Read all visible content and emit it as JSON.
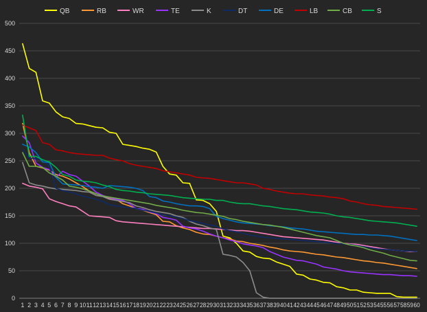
{
  "chart_data": {
    "type": "line",
    "title": "",
    "xlabel": "",
    "ylabel": "",
    "ylim": [
      0,
      500
    ],
    "yticks": [
      0,
      50,
      100,
      150,
      200,
      250,
      300,
      350,
      400,
      450,
      500
    ],
    "x": [
      1,
      2,
      3,
      4,
      5,
      6,
      7,
      8,
      9,
      10,
      11,
      12,
      13,
      14,
      15,
      16,
      17,
      18,
      19,
      20,
      21,
      22,
      23,
      24,
      25,
      26,
      27,
      28,
      29,
      30,
      31,
      32,
      33,
      34,
      35,
      36,
      37,
      38,
      39,
      40,
      41,
      42,
      43,
      44,
      45,
      46,
      47,
      48,
      49,
      50,
      51,
      52,
      53,
      54,
      55,
      56,
      57,
      58,
      59,
      60
    ],
    "grid": true,
    "legend": "top",
    "series": [
      {
        "name": "QB",
        "color": "#ffff00",
        "values": [
          463,
          418,
          411,
          359,
          355,
          339,
          330,
          327,
          318,
          317,
          314,
          311,
          310,
          302,
          300,
          280,
          278,
          276,
          273,
          271,
          266,
          240,
          226,
          224,
          210,
          209,
          179,
          178,
          172,
          158,
          113,
          110,
          100,
          86,
          84,
          76,
          73,
          72,
          66,
          62,
          58,
          44,
          42,
          35,
          33,
          29,
          28,
          21,
          19,
          15,
          15,
          11,
          10,
          9,
          9,
          9,
          3,
          2,
          2,
          2
        ]
      },
      {
        "name": "RB",
        "color": "#ff9933",
        "values": [
          318,
          265,
          240,
          237,
          233,
          225,
          222,
          217,
          210,
          203,
          195,
          190,
          186,
          182,
          180,
          172,
          168,
          163,
          160,
          156,
          152,
          140,
          139,
          132,
          128,
          125,
          120,
          117,
          116,
          113,
          110,
          108,
          104,
          103,
          100,
          98,
          96,
          93,
          91,
          88,
          86,
          85,
          84,
          82,
          80,
          79,
          77,
          75,
          74,
          72,
          70,
          68,
          67,
          65,
          64,
          62,
          60,
          58,
          56,
          54
        ]
      },
      {
        "name": "WR",
        "color": "#ff80c0",
        "values": [
          209,
          204,
          202,
          199,
          181,
          176,
          172,
          168,
          166,
          158,
          150,
          149,
          148,
          147,
          141,
          139,
          138,
          137,
          136,
          135,
          134,
          133,
          132,
          131,
          130,
          129,
          128,
          127,
          127,
          126,
          125,
          124,
          123,
          123,
          122,
          120,
          118,
          116,
          114,
          112,
          111,
          110,
          109,
          108,
          107,
          106,
          104,
          102,
          100,
          99,
          98,
          96,
          94,
          92,
          90,
          88,
          87,
          86,
          85,
          85
        ]
      },
      {
        "name": "TE",
        "color": "#9933ff",
        "values": [
          295,
          283,
          246,
          238,
          234,
          220,
          231,
          225,
          222,
          213,
          204,
          193,
          187,
          183,
          180,
          178,
          172,
          163,
          162,
          157,
          154,
          147,
          145,
          142,
          131,
          128,
          126,
          122,
          117,
          113,
          110,
          106,
          103,
          99,
          97,
          95,
          92,
          85,
          80,
          75,
          72,
          69,
          68,
          65,
          62,
          57,
          55,
          53,
          50,
          48,
          47,
          46,
          45,
          44,
          43,
          43,
          42,
          41,
          41,
          40
        ]
      },
      {
        "name": "K",
        "color": "#8c8c8c",
        "values": [
          247,
          210,
          206,
          204,
          201,
          199,
          198,
          197,
          196,
          194,
          193,
          187,
          185,
          180,
          178,
          176,
          174,
          168,
          165,
          161,
          158,
          156,
          154,
          150,
          147,
          140,
          135,
          132,
          128,
          125,
          80,
          78,
          75,
          65,
          50,
          10,
          2,
          0,
          0,
          0,
          0,
          0,
          0,
          0,
          0,
          0,
          0,
          0,
          0,
          0,
          0,
          0,
          0,
          0,
          0,
          0,
          0,
          0,
          0,
          0
        ]
      },
      {
        "name": "DT",
        "color": "#0f2a66",
        "values": [
          270,
          255,
          254,
          252,
          240,
          200,
          196,
          193,
          190,
          186,
          183,
          180,
          176,
          170,
          168,
          166,
          165,
          163,
          160,
          158,
          155,
          152,
          150,
          148,
          145,
          141,
          139,
          136,
          133,
          131,
          126,
          123,
          121,
          118,
          115,
          113,
          111,
          110,
          109,
          108,
          107,
          106,
          105,
          104,
          103,
          102,
          101,
          100,
          99,
          98,
          96,
          94,
          92,
          90,
          89,
          88,
          87,
          86,
          86,
          85
        ]
      },
      {
        "name": "DE",
        "color": "#0070c0",
        "values": [
          280,
          275,
          265,
          248,
          247,
          220,
          208,
          207,
          206,
          205,
          203,
          202,
          200,
          205,
          204,
          203,
          202,
          200,
          196,
          185,
          183,
          177,
          175,
          172,
          170,
          168,
          168,
          167,
          163,
          149,
          145,
          142,
          139,
          137,
          136,
          135,
          134,
          132,
          131,
          130,
          128,
          127,
          126,
          124,
          122,
          121,
          120,
          119,
          118,
          117,
          116,
          116,
          115,
          115,
          114,
          113,
          111,
          109,
          107,
          105
        ]
      },
      {
        "name": "LB",
        "color": "#c00000",
        "values": [
          315,
          310,
          305,
          283,
          280,
          270,
          268,
          265,
          263,
          262,
          261,
          260,
          260,
          255,
          252,
          250,
          245,
          242,
          240,
          238,
          236,
          232,
          230,
          228,
          226,
          224,
          220,
          219,
          218,
          216,
          214,
          212,
          210,
          210,
          208,
          206,
          200,
          198,
          195,
          193,
          191,
          190,
          190,
          188,
          187,
          186,
          184,
          183,
          181,
          177,
          175,
          172,
          170,
          169,
          167,
          166,
          165,
          164,
          163,
          162
        ]
      },
      {
        "name": "CB",
        "color": "#70ad47",
        "values": [
          265,
          240,
          240,
          238,
          228,
          222,
          215,
          204,
          202,
          199,
          195,
          190,
          186,
          184,
          182,
          180,
          178,
          176,
          174,
          172,
          169,
          167,
          165,
          163,
          160,
          158,
          156,
          155,
          153,
          151,
          149,
          145,
          143,
          140,
          138,
          136,
          134,
          133,
          131,
          129,
          126,
          123,
          120,
          117,
          114,
          112,
          110,
          105,
          100,
          97,
          95,
          92,
          88,
          85,
          82,
          78,
          75,
          72,
          69,
          68
        ]
      },
      {
        "name": "S",
        "color": "#00b050",
        "values": [
          333,
          258,
          258,
          252,
          248,
          238,
          225,
          222,
          215,
          213,
          212,
          210,
          206,
          203,
          198,
          196,
          195,
          193,
          192,
          190,
          189,
          188,
          187,
          185,
          183,
          182,
          181,
          180,
          180,
          178,
          178,
          175,
          173,
          172,
          172,
          170,
          168,
          167,
          165,
          163,
          162,
          161,
          159,
          157,
          156,
          155,
          153,
          150,
          148,
          147,
          145,
          143,
          141,
          140,
          139,
          138,
          137,
          135,
          133,
          131
        ]
      }
    ]
  }
}
